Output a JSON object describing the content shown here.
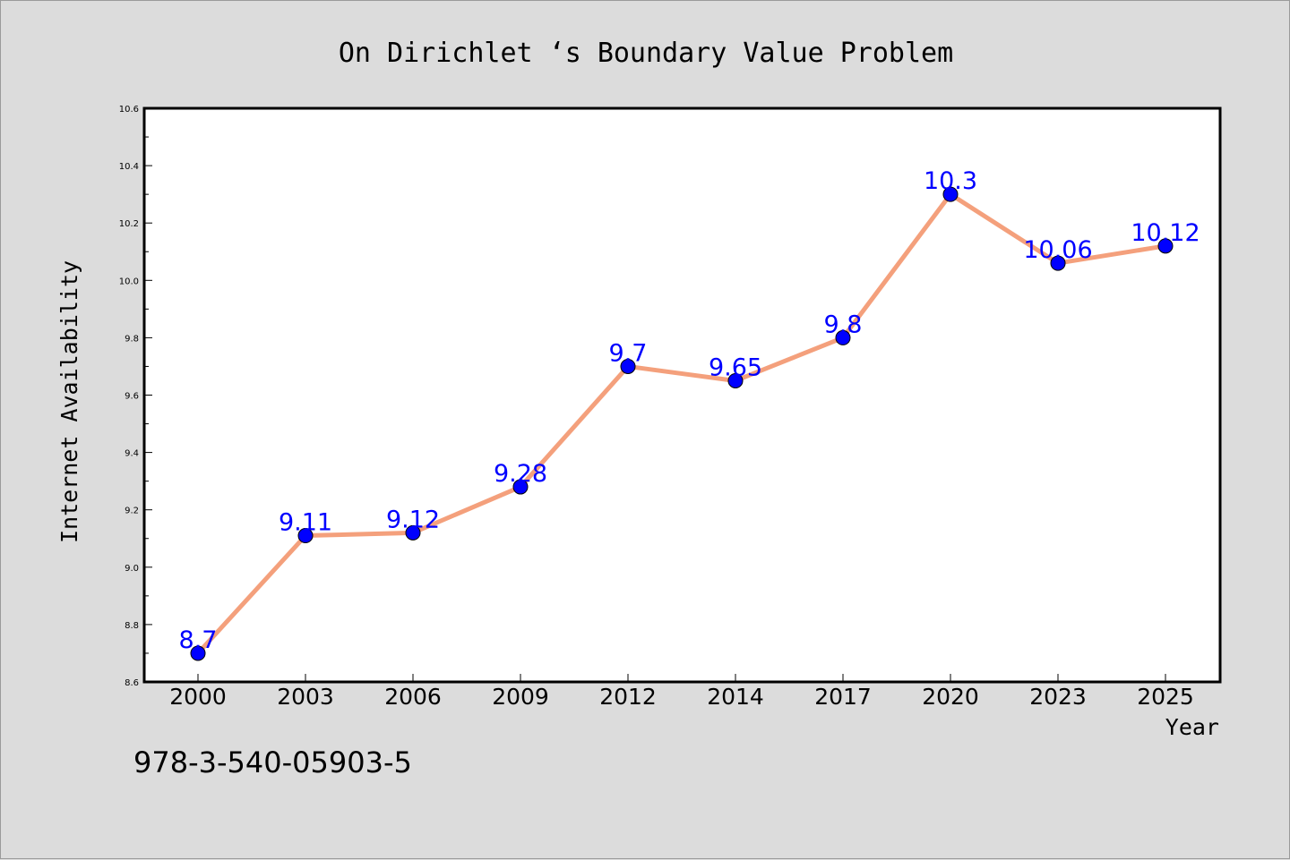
{
  "chart_data": {
    "type": "line",
    "title": "On Dirichlet ‘s Boundary Value Problem",
    "xlabel": "Year",
    "ylabel": "Internet Availability",
    "categories": [
      "2000",
      "2003",
      "2006",
      "2009",
      "2012",
      "2014",
      "2017",
      "2020",
      "2023",
      "2025"
    ],
    "series": [
      {
        "values": [
          8.7,
          9.11,
          9.12,
          9.28,
          9.7,
          9.65,
          9.8,
          10.3,
          10.06,
          10.12
        ],
        "labels": [
          "8.7",
          "9.11",
          "9.12",
          "9.28",
          "9.7",
          "9.65",
          "9.8",
          "10.3",
          "10.06",
          "10.12"
        ]
      }
    ],
    "ylim": [
      8.6,
      10.6
    ],
    "yticks": [
      "8.6",
      "8.8",
      "9.0",
      "9.2",
      "9.4",
      "9.6",
      "9.8",
      "10.0",
      "10.2",
      "10.4",
      "10.6"
    ],
    "grid": false,
    "colors": {
      "line": "#f4a07c",
      "marker": "#0000ff",
      "label": "#0000ff",
      "background": "#dcdcdc",
      "plot_background": "#ffffff"
    }
  },
  "footer": {
    "isbn": "978-3-540-05903-5"
  }
}
